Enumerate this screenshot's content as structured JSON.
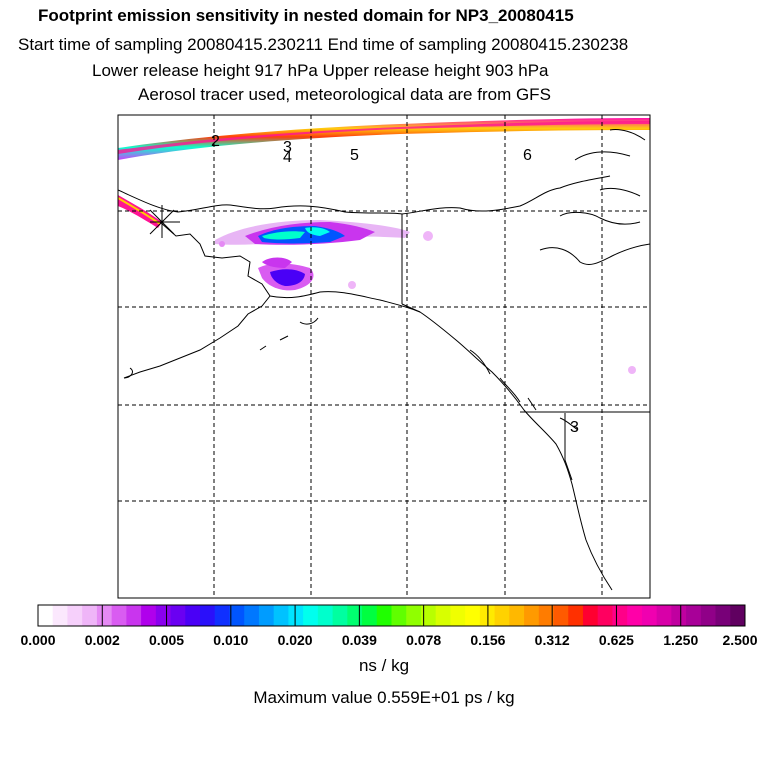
{
  "titles": {
    "line1": "Footprint emission sensitivity in nested domain for NP3_20080415",
    "line2": "Start time of sampling 20080415.230211     End time of sampling 20080415.230238",
    "line3": "Lower release height  917 hPa        Upper release height  903 hPa",
    "line4": "Aerosol tracer used, meteorological data are from GFS"
  },
  "map": {
    "trajectory_labels": [
      "2",
      "3",
      "4",
      "5",
      "6",
      "3"
    ],
    "colors": {
      "frame": "#000000",
      "coast": "#000000",
      "grid": "#000000",
      "plume_high": "#ff1493",
      "plume_mid": "#ffd700",
      "plume_low": "#00ffff"
    }
  },
  "colorbar": {
    "tick_labels": [
      "0.000",
      "0.002",
      "0.005",
      "0.010",
      "0.020",
      "0.039",
      "0.078",
      "0.156",
      "0.312",
      "0.625",
      "1.250",
      "2.500"
    ],
    "colors": [
      "#ffffff",
      "#fbe8fd",
      "#f6d0fb",
      "#efb5f8",
      "#e58af4",
      "#d95cf1",
      "#c935ee",
      "#b000ec",
      "#8a00ee",
      "#6a00f2",
      "#4a00f6",
      "#2a10fa",
      "#1030ff",
      "#0055ff",
      "#0078ff",
      "#009cff",
      "#00c2ff",
      "#00e4ff",
      "#00ffee",
      "#00ffcc",
      "#00ffa0",
      "#00ff70",
      "#00ff40",
      "#20ff00",
      "#60ff00",
      "#90ff00",
      "#b8ff00",
      "#d8ff00",
      "#f0ff00",
      "#ffff00",
      "#ffea00",
      "#ffd200",
      "#ffb800",
      "#ff9a00",
      "#ff7c00",
      "#ff5a00",
      "#ff3000",
      "#ff0030",
      "#ff0060",
      "#ff0088",
      "#ff00a8",
      "#f000b0",
      "#d800a8",
      "#c000a0",
      "#a80098",
      "#900088",
      "#780078",
      "#600060"
    ],
    "units": "ns / kg",
    "maximum": "Maximum value  0.559E+01 ps / kg"
  }
}
